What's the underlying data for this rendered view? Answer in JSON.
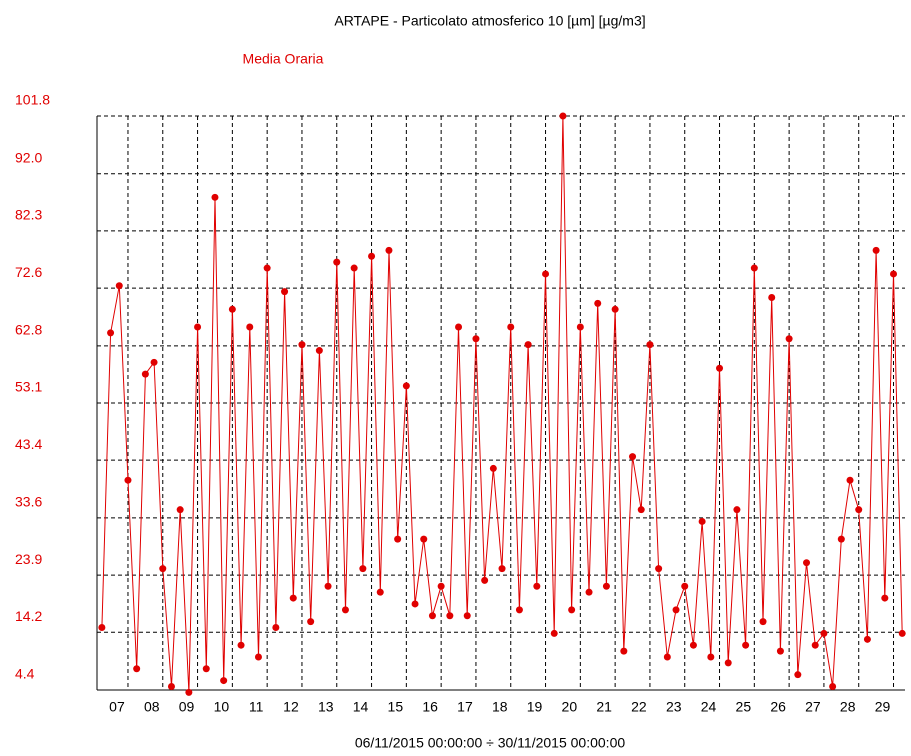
{
  "chart_data": {
    "type": "line",
    "title": "ARTAPE - Particolato atmosferico 10 [µm] [µg/m3]",
    "subtitle": "Media Oraria",
    "x_label": "06/11/2015 00:00:00 ÷ 30/11/2015 00:00:00",
    "x": [
      6.25,
      6.5,
      6.75,
      7,
      7.25,
      7.5,
      7.75,
      8,
      8.25,
      8.5,
      8.75,
      9,
      9.25,
      9.5,
      9.75,
      10,
      10.25,
      10.5,
      10.75,
      11,
      11.25,
      11.5,
      11.75,
      12,
      12.25,
      12.5,
      12.75,
      13,
      13.25,
      13.5,
      13.75,
      14,
      14.25,
      14.5,
      14.75,
      15,
      15.25,
      15.5,
      15.75,
      16,
      16.25,
      16.5,
      16.75,
      17,
      17.25,
      17.5,
      17.75,
      18,
      18.25,
      18.5,
      18.75,
      19,
      19.25,
      19.5,
      19.75,
      20,
      20.25,
      20.5,
      20.75,
      21,
      21.25,
      21.5,
      21.75,
      22,
      22.25,
      22.5,
      22.75,
      23,
      23.25,
      23.5,
      23.75,
      24,
      24.25,
      24.5,
      24.75,
      25,
      25.25,
      25.5,
      25.75,
      26,
      26.25,
      26.5,
      26.75,
      27,
      27.25,
      27.5,
      27.75,
      28,
      28.25,
      28.5,
      28.75,
      29,
      29.25
    ],
    "series": [
      {
        "name": "Media Oraria",
        "color": "#e00000",
        "values": [
          15,
          65,
          73,
          40,
          8,
          58,
          60,
          25,
          5,
          35,
          4,
          66,
          8,
          88,
          6,
          69,
          12,
          66,
          10,
          76,
          15,
          72,
          20,
          63,
          16,
          62,
          22,
          77,
          18,
          76,
          25,
          78,
          21,
          79,
          30,
          56,
          19,
          30,
          17,
          22,
          17,
          66,
          17,
          64,
          23,
          42,
          25,
          66,
          18,
          63,
          22,
          75,
          14,
          101.8,
          18,
          66,
          21,
          70,
          22,
          69,
          11,
          44,
          35,
          63,
          25,
          10,
          18,
          22,
          12,
          33,
          10,
          59,
          9,
          35,
          12,
          76,
          16,
          71,
          11,
          64,
          7,
          26,
          12,
          14,
          5,
          30,
          40,
          35,
          13,
          79,
          20,
          75,
          14
        ]
      }
    ],
    "xlim": [
      6.11,
      29.33
    ],
    "xticks": [
      {
        "value": 7,
        "label": "07"
      },
      {
        "value": 8,
        "label": "08"
      },
      {
        "value": 9,
        "label": "09"
      },
      10,
      11,
      12,
      13,
      14,
      15,
      16,
      17,
      18,
      19,
      20,
      21,
      22,
      23,
      24,
      25,
      26,
      27,
      28,
      29
    ],
    "ylim": [
      4.4,
      101.8
    ],
    "yticks": [
      4.4,
      14.2,
      23.9,
      33.6,
      43.4,
      53.1,
      {
        "value": 62.8,
        "label": "62.8"
      },
      72.6,
      82.3,
      {
        "value": 92,
        "label": "92.0"
      },
      101.8
    ],
    "grid": true
  }
}
